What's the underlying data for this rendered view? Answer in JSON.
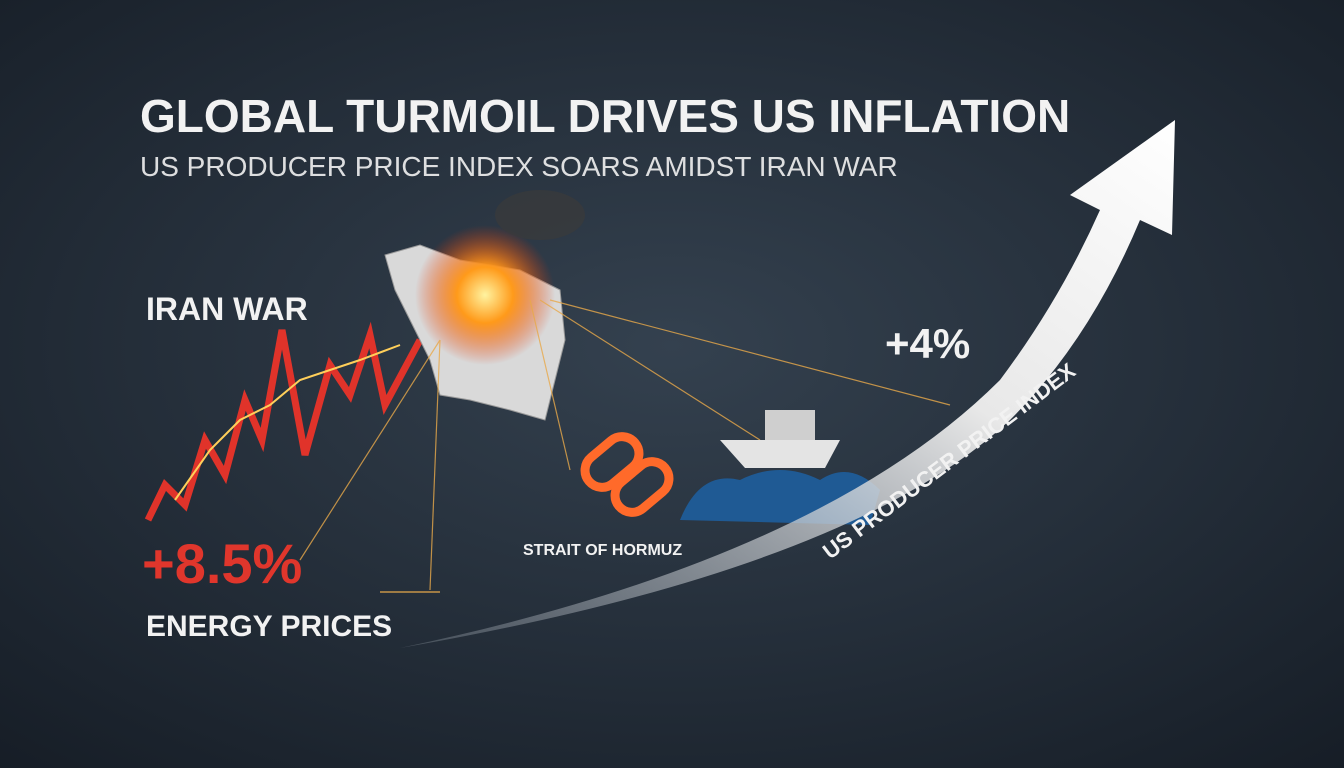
{
  "header": {
    "title": "GLOBAL TURMOIL DRIVES US INFLATION",
    "subtitle": "US PRODUCER PRICE INDEX SOARS AMIDST IRAN WAR"
  },
  "energy": {
    "label": "IRAN WAR",
    "change": "+8.5%",
    "caption": "ENERGY PRICES"
  },
  "strait": {
    "label": "STRAIT OF HORMUZ"
  },
  "ppi": {
    "change": "+4%",
    "label": "US PRODUCER PRICE INDEX"
  }
}
